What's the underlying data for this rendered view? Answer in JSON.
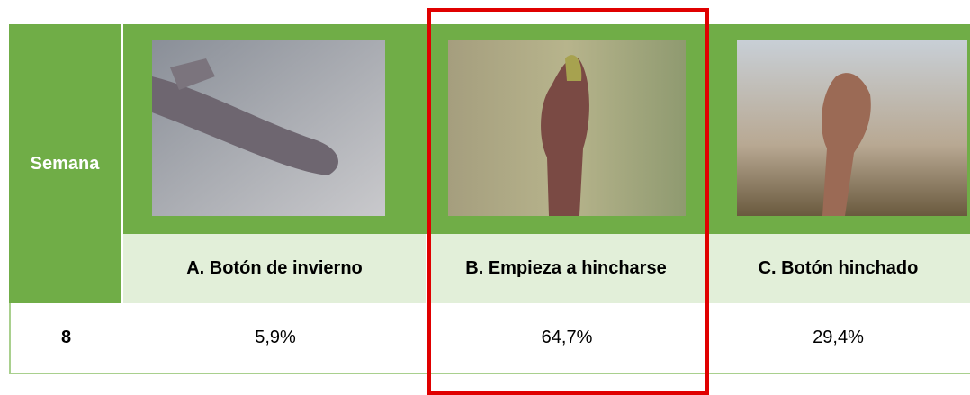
{
  "table": {
    "header": {
      "row_label": "Semana",
      "columns": [
        "A. Botón de invierno",
        "B. Empieza a hincharse",
        "C. Botón hinchado"
      ]
    },
    "rows": [
      [
        "8",
        "5,9%",
        "64,7%",
        "29,4%"
      ]
    ]
  }
}
